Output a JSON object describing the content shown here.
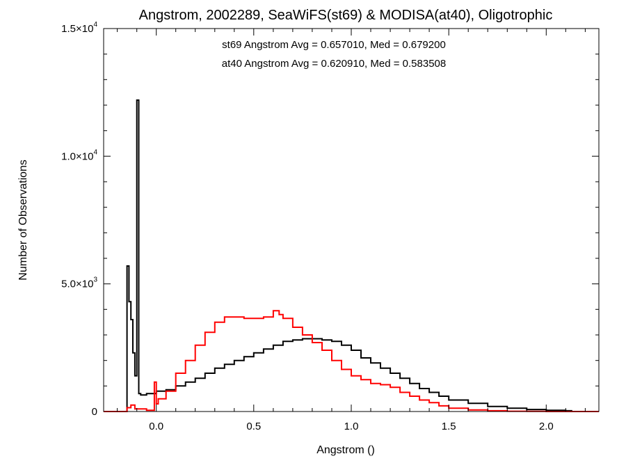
{
  "colors": {
    "series_0": "#000000",
    "series_1": "#ff0000",
    "background": "#ffffff"
  },
  "chart_data": {
    "type": "line",
    "style": "histogram step",
    "title": "Angstrom, 2002289, SeaWiFS(st69) & MODISA(at40), Oligotrophic",
    "xlabel": "Angstrom ()",
    "ylabel": "Number of Observations",
    "xlim": [
      -0.27,
      2.27
    ],
    "ylim": [
      0,
      15000
    ],
    "x_ticks": [
      0.0,
      0.5,
      1.0,
      1.5,
      2.0
    ],
    "x_tick_labels": [
      "0.0",
      "0.5",
      "1.0",
      "1.5",
      "2.0"
    ],
    "y_ticks": [
      0,
      5000,
      10000,
      15000
    ],
    "y_tick_labels": [
      {
        "mantissa": "0",
        "exp": ""
      },
      {
        "mantissa": "5.0×10",
        "exp": "3"
      },
      {
        "mantissa": "1.0×10",
        "exp": "4"
      },
      {
        "mantissa": "1.5×10",
        "exp": "4"
      }
    ],
    "grid": false,
    "annotations": [
      {
        "text": "st69 Angstrom Avg = 0.657010, Med = 0.679200",
        "color": "#000000"
      },
      {
        "text": "at40 Angstrom Avg = 0.620910, Med = 0.583508",
        "color": "#ff0000"
      }
    ],
    "series": [
      {
        "color": "#000000",
        "x": [
          -0.27,
          -0.15,
          -0.14,
          -0.13,
          -0.12,
          -0.11,
          -0.1,
          -0.09,
          -0.08,
          -0.05,
          0.0,
          0.05,
          0.1,
          0.15,
          0.2,
          0.25,
          0.3,
          0.35,
          0.4,
          0.45,
          0.5,
          0.55,
          0.6,
          0.65,
          0.7,
          0.75,
          0.8,
          0.85,
          0.9,
          0.95,
          1.0,
          1.05,
          1.1,
          1.15,
          1.2,
          1.25,
          1.3,
          1.35,
          1.4,
          1.45,
          1.5,
          1.6,
          1.7,
          1.8,
          1.9,
          2.0,
          2.1,
          2.13,
          2.27
        ],
        "y": [
          0,
          5700,
          4300,
          3600,
          2300,
          1400,
          12200,
          700,
          650,
          700,
          800,
          850,
          1000,
          1150,
          1300,
          1500,
          1700,
          1850,
          2000,
          2150,
          2300,
          2450,
          2600,
          2750,
          2800,
          2850,
          2850,
          2800,
          2750,
          2600,
          2400,
          2100,
          1900,
          1700,
          1500,
          1300,
          1100,
          900,
          750,
          600,
          450,
          320,
          200,
          130,
          80,
          50,
          30,
          0,
          0
        ]
      },
      {
        "color": "#ff0000",
        "x": [
          -0.27,
          -0.15,
          -0.13,
          -0.11,
          -0.05,
          -0.01,
          0.0,
          0.01,
          0.05,
          0.1,
          0.15,
          0.2,
          0.25,
          0.3,
          0.35,
          0.4,
          0.45,
          0.5,
          0.55,
          0.6,
          0.63,
          0.65,
          0.7,
          0.75,
          0.8,
          0.85,
          0.9,
          0.95,
          1.0,
          1.05,
          1.1,
          1.15,
          1.2,
          1.25,
          1.3,
          1.35,
          1.4,
          1.45,
          1.5,
          1.6,
          1.7,
          1.8,
          1.9,
          2.0,
          2.27
        ],
        "y": [
          0,
          150,
          250,
          100,
          50,
          1150,
          300,
          500,
          800,
          1500,
          2000,
          2600,
          3100,
          3500,
          3700,
          3700,
          3650,
          3650,
          3700,
          3950,
          3800,
          3650,
          3300,
          3000,
          2700,
          2400,
          2000,
          1650,
          1400,
          1250,
          1100,
          1050,
          950,
          750,
          600,
          450,
          350,
          220,
          130,
          60,
          30,
          10,
          5,
          0,
          0
        ]
      }
    ]
  }
}
